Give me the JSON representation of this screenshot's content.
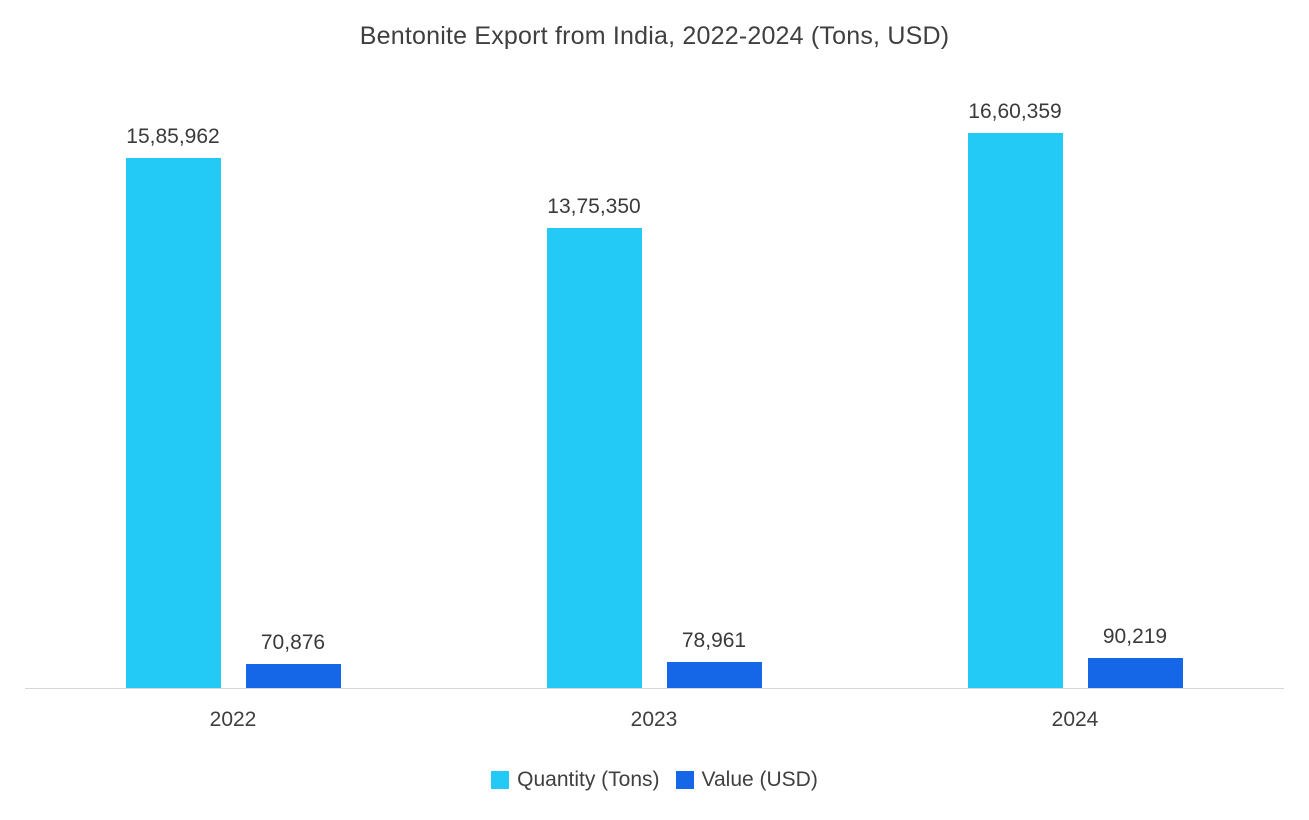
{
  "chart_data": {
    "type": "bar",
    "title": "Bentonite Export from India, 2022-2024 (Tons, USD)",
    "categories": [
      "2022",
      "2023",
      "2024"
    ],
    "series": [
      {
        "name": "Quantity (Tons)",
        "color": "#22caf5",
        "values": [
          1585962,
          1375350,
          1660359
        ],
        "labels": [
          "15,85,962",
          "13,75,350",
          "16,60,359"
        ]
      },
      {
        "name": "Value (USD)",
        "color": "#1567e8",
        "values": [
          70876,
          78961,
          90219
        ],
        "labels": [
          "70,876",
          "78,961",
          "90,219"
        ]
      }
    ],
    "xlabel": "",
    "ylabel": "",
    "ylim": [
      0,
      1660359
    ],
    "grid": false,
    "legend_position": "bottom",
    "axis_line_color": "#d6d6d6"
  }
}
